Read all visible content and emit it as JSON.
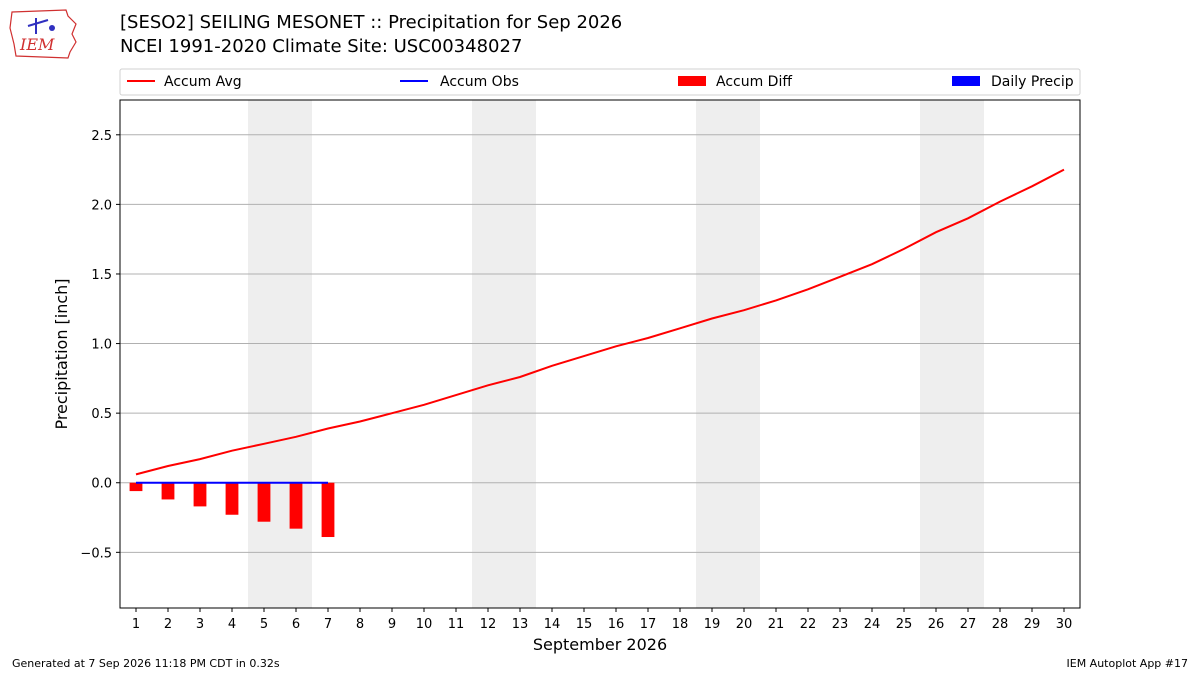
{
  "header": {
    "title": "[SESO2] SEILING MESONET :: Precipitation for Sep 2026",
    "subtitle": "NCEI 1991-2020 Climate Site: USC00348027",
    "logo_text": "IEM"
  },
  "footer": {
    "generated": "Generated at 7 Sep 2026 11:18 PM CDT in 0.32s",
    "app": "IEM Autoplot App #17"
  },
  "colors": {
    "accum_avg": "#ff0000",
    "accum_obs": "#0000ff",
    "accum_diff": "#ff0000",
    "daily_precip": "#0000ff",
    "weekend_shade": "#eeeeee",
    "grid": "#b0b0b0"
  },
  "chart_data": {
    "type": "line",
    "xlabel": "September 2026",
    "ylabel": "Precipitation [inch]",
    "xlim": [
      0.5,
      30.5
    ],
    "ylim": [
      -0.9,
      2.75
    ],
    "yticks": [
      -0.5,
      0.0,
      0.5,
      1.0,
      1.5,
      2.0,
      2.5
    ],
    "ytick_labels": [
      "−0.5",
      "0.0",
      "0.5",
      "1.0",
      "1.5",
      "2.0",
      "2.5"
    ],
    "x": [
      1,
      2,
      3,
      4,
      5,
      6,
      7,
      8,
      9,
      10,
      11,
      12,
      13,
      14,
      15,
      16,
      17,
      18,
      19,
      20,
      21,
      22,
      23,
      24,
      25,
      26,
      27,
      28,
      29,
      30
    ],
    "xtick_labels": [
      "1",
      "2",
      "3",
      "4",
      "5",
      "6",
      "7",
      "8",
      "9",
      "10",
      "11",
      "12",
      "13",
      "14",
      "15",
      "16",
      "17",
      "18",
      "19",
      "20",
      "21",
      "22",
      "23",
      "24",
      "25",
      "26",
      "27",
      "28",
      "29",
      "30"
    ],
    "grid": "horizontal",
    "legend_position": "top",
    "weekend_spans": [
      [
        4.5,
        6.5
      ],
      [
        11.5,
        13.5
      ],
      [
        18.5,
        20.5
      ],
      [
        25.5,
        27.5
      ]
    ],
    "series": [
      {
        "name": "Accum Avg",
        "kind": "line",
        "x": [
          1,
          2,
          3,
          4,
          5,
          6,
          7,
          8,
          9,
          10,
          11,
          12,
          13,
          14,
          15,
          16,
          17,
          18,
          19,
          20,
          21,
          22,
          23,
          24,
          25,
          26,
          27,
          28,
          29,
          30
        ],
        "values": [
          0.06,
          0.12,
          0.17,
          0.23,
          0.28,
          0.33,
          0.39,
          0.44,
          0.5,
          0.56,
          0.63,
          0.7,
          0.76,
          0.84,
          0.91,
          0.98,
          1.04,
          1.11,
          1.18,
          1.24,
          1.31,
          1.39,
          1.48,
          1.57,
          1.68,
          1.8,
          1.9,
          2.02,
          2.13,
          2.25
        ]
      },
      {
        "name": "Accum Obs",
        "kind": "line",
        "x": [
          1,
          2,
          3,
          4,
          5,
          6,
          7
        ],
        "values": [
          0.0,
          0.0,
          0.0,
          0.0,
          0.0,
          0.0,
          0.0
        ]
      },
      {
        "name": "Accum Diff",
        "kind": "bar",
        "x": [
          1,
          2,
          3,
          4,
          5,
          6,
          7
        ],
        "values": [
          -0.06,
          -0.12,
          -0.17,
          -0.23,
          -0.28,
          -0.33,
          -0.39
        ]
      },
      {
        "name": "Daily Precip",
        "kind": "bar",
        "x": [
          1,
          2,
          3,
          4,
          5,
          6,
          7
        ],
        "values": [
          0,
          0,
          0,
          0,
          0,
          0,
          0
        ]
      }
    ]
  }
}
